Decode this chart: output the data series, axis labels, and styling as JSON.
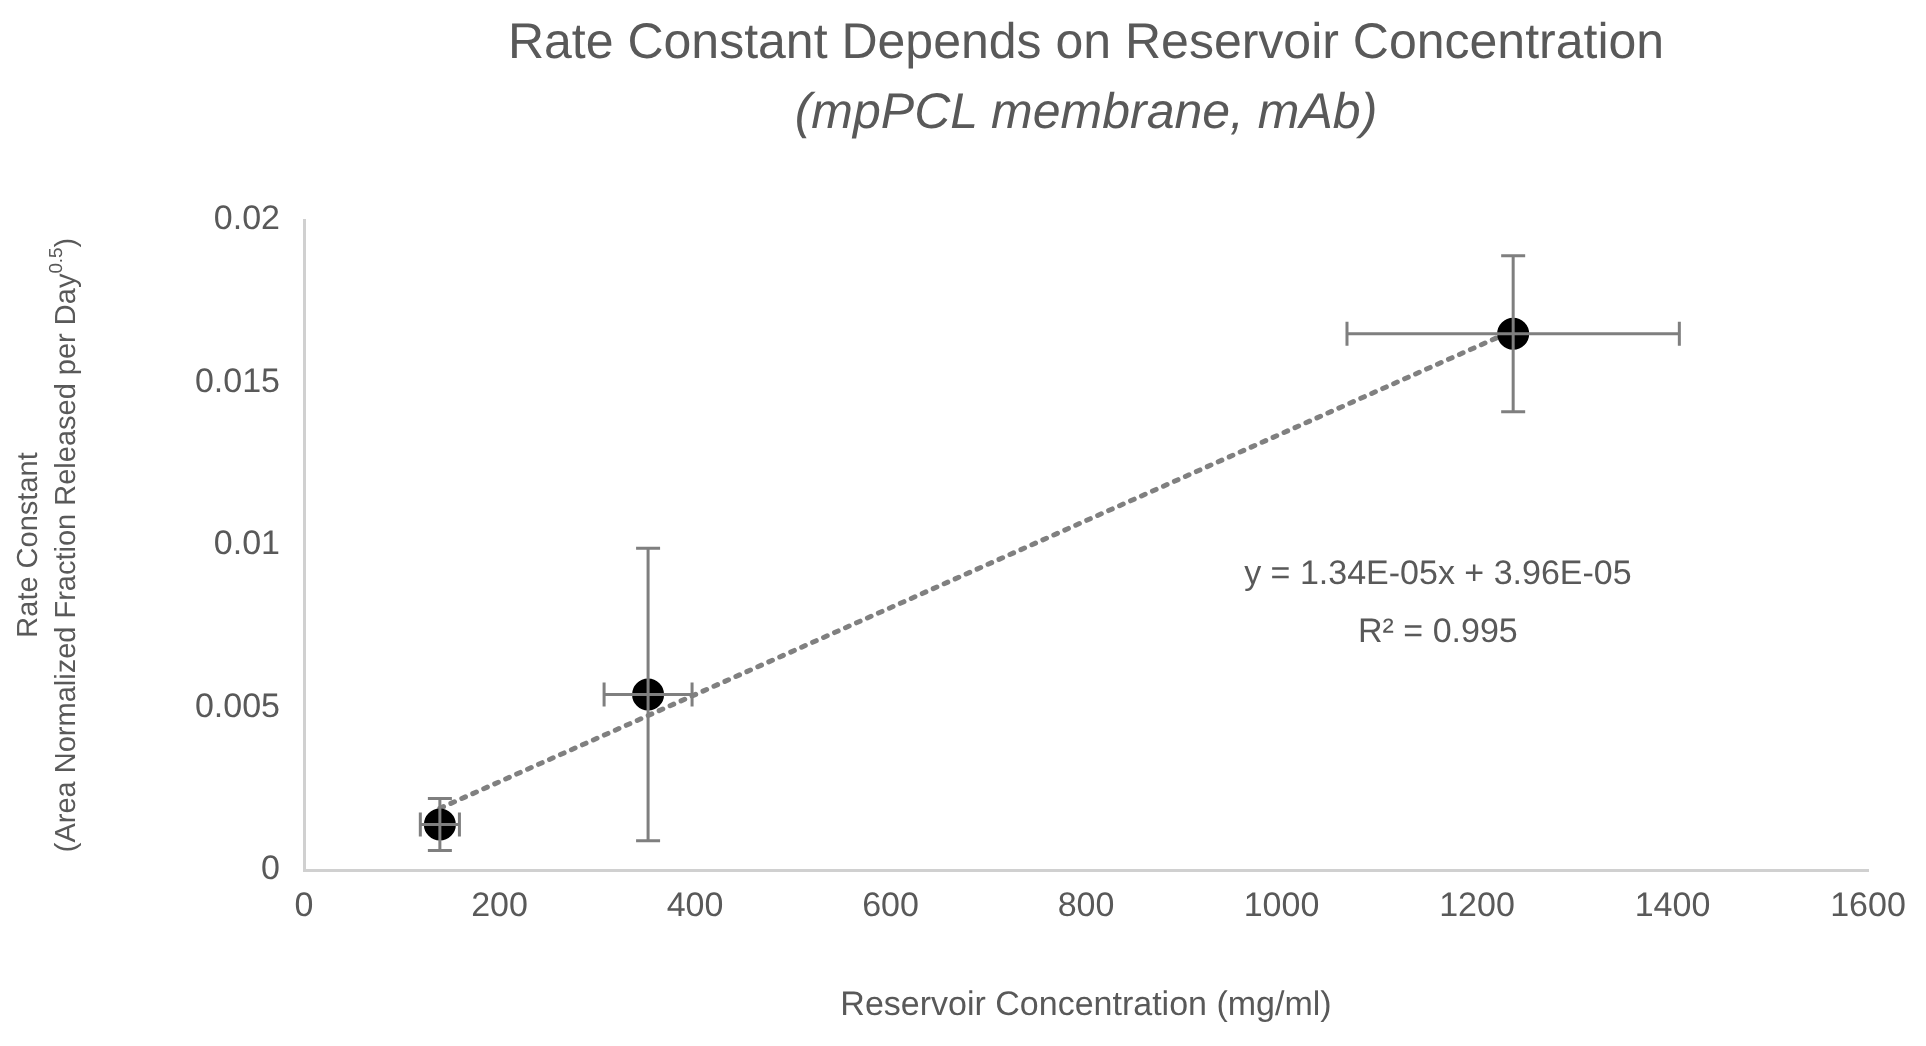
{
  "chart_data": {
    "type": "scatter",
    "title": "Rate Constant Depends on Reservoir Concentration",
    "subtitle": "(mpPCL membrane, mAb)",
    "xlabel": "Reservoir Concentration (mg/ml)",
    "ylabel": "Rate Constant\n(Area Normalized Fraction Released per Day$^{0.5}$)",
    "xlim": [
      0,
      1600
    ],
    "xticks": [
      0,
      200,
      400,
      600,
      800,
      1000,
      1200,
      1400,
      1600
    ],
    "ylim": [
      0,
      0.02
    ],
    "yticks": [
      0,
      0.005,
      0.01,
      0.015,
      0.02
    ],
    "grid": false,
    "legend": false,
    "series": [
      {
        "color": "#000000",
        "marker": "circle",
        "x": [
          139,
          352,
          1237
        ],
        "values": [
          0.0014,
          0.0054,
          0.0165
        ],
        "errors": [
          0.0008,
          0.0045,
          0.0024
        ],
        "xerrors": [
          20,
          45,
          170
        ]
      },
      {
        "type": "line",
        "color": "#808080",
        "line_style": "dotted",
        "marker": "none",
        "x": [
          139,
          1237
        ],
        "values": [
          0.0019,
          0.0166
        ]
      }
    ],
    "annotations": [
      "y = 1.34E-05x + 3.96E-05",
      "R² = 0.995"
    ]
  }
}
